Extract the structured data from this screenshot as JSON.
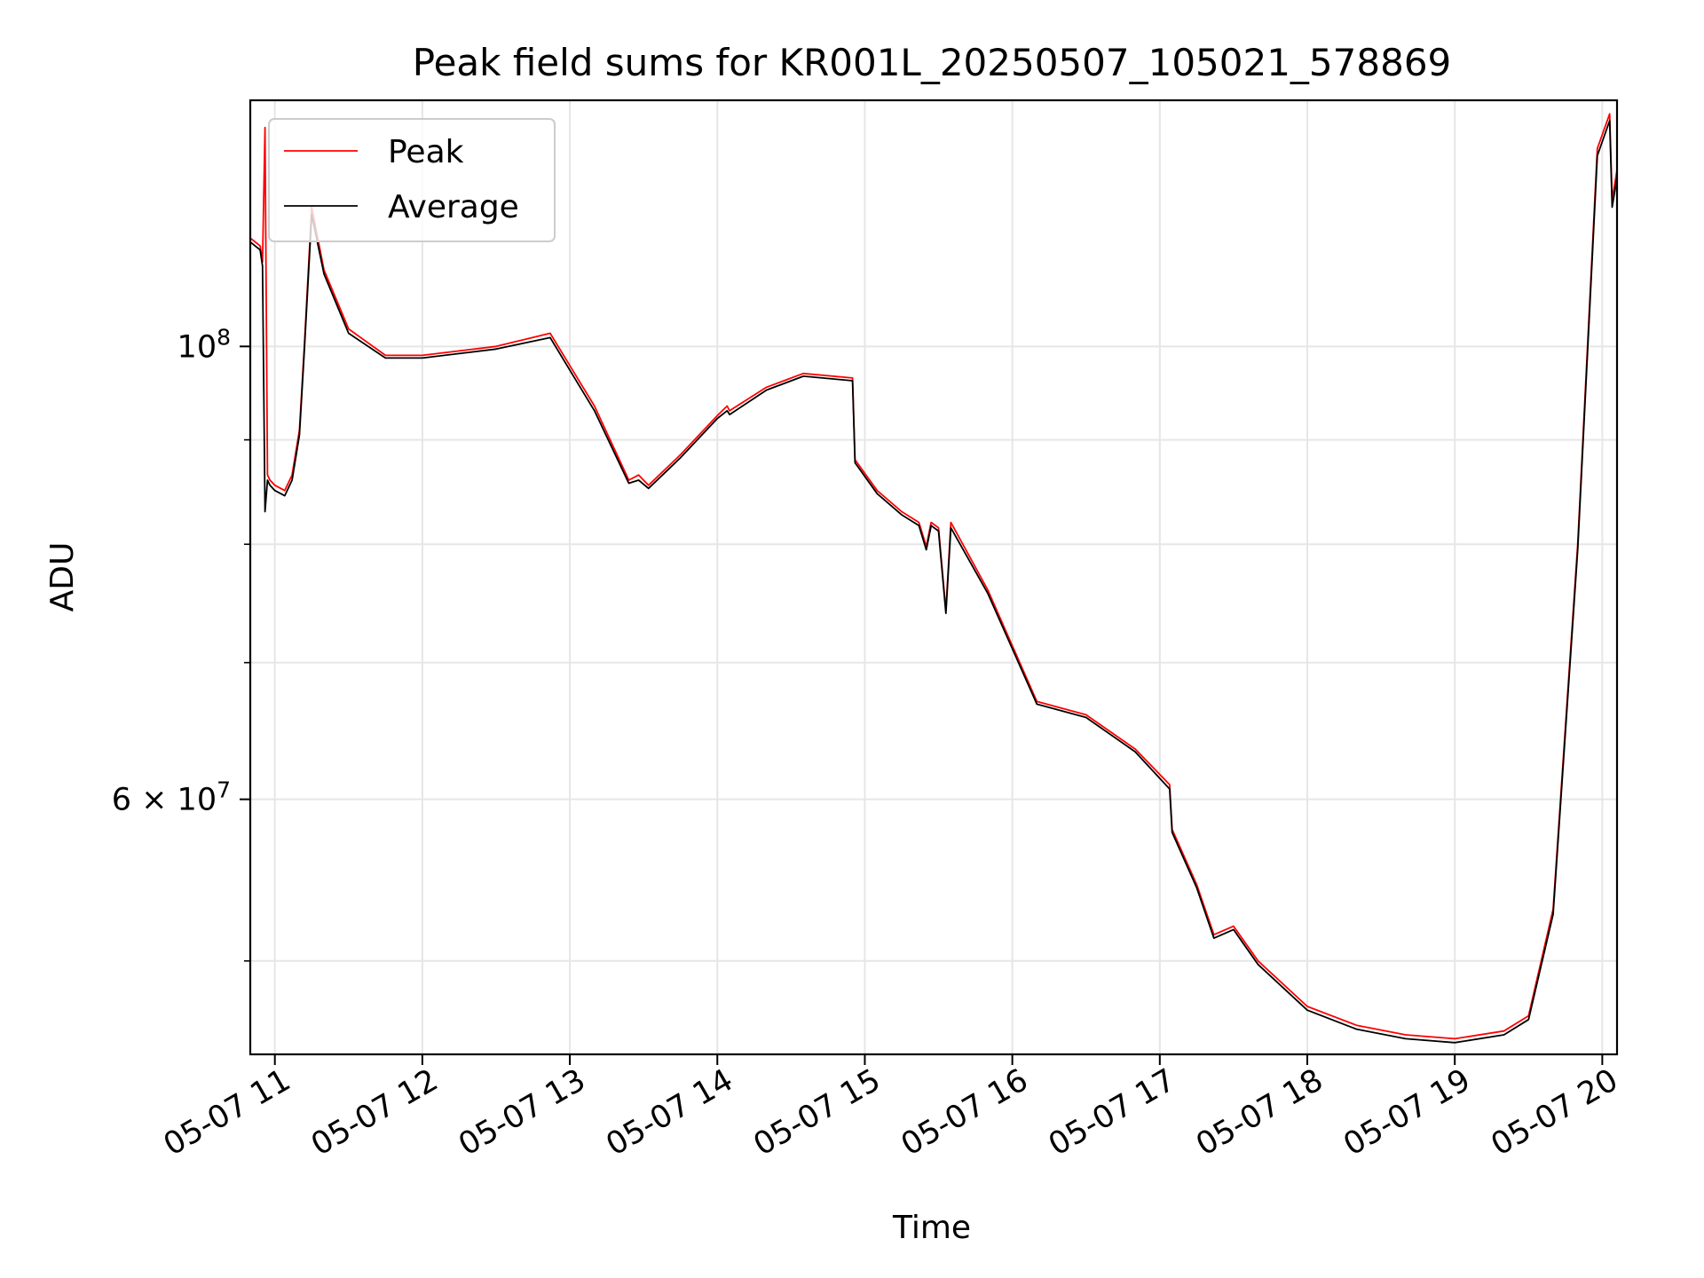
{
  "chart_data": {
    "type": "line",
    "title": "Peak field sums for KR001L_20250507_105021_578869",
    "xlabel": "Time",
    "ylabel": "ADU",
    "x_scale": "time",
    "y_scale": "log",
    "xlim": [
      "2025-05-07 10:50",
      "2025-05-07 20:06"
    ],
    "ylim": [
      45000000,
      132000000
    ],
    "x_ticks": [
      {
        "t": "2025-05-07 11:00",
        "label": "05-07 11"
      },
      {
        "t": "2025-05-07 12:00",
        "label": "05-07 12"
      },
      {
        "t": "2025-05-07 13:00",
        "label": "05-07 13"
      },
      {
        "t": "2025-05-07 14:00",
        "label": "05-07 14"
      },
      {
        "t": "2025-05-07 15:00",
        "label": "05-07 15"
      },
      {
        "t": "2025-05-07 16:00",
        "label": "05-07 16"
      },
      {
        "t": "2025-05-07 17:00",
        "label": "05-07 17"
      },
      {
        "t": "2025-05-07 18:00",
        "label": "05-07 18"
      },
      {
        "t": "2025-05-07 19:00",
        "label": "05-07 19"
      },
      {
        "t": "2025-05-07 20:00",
        "label": "05-07 20"
      }
    ],
    "y_major_ticks": [
      {
        "value": 100000000,
        "label_base": "10",
        "label_exp": "8",
        "label_coef": ""
      },
      {
        "value": 60000000,
        "label_base": "10",
        "label_exp": "7",
        "label_coef": "6 × "
      }
    ],
    "y_minor_ticks": [
      50000000,
      70000000,
      80000000,
      90000000
    ],
    "grid": true,
    "legend": {
      "location": "upper-left"
    },
    "series": [
      {
        "name": "Peak",
        "color": "#ff0000",
        "points": [
          [
            "2025-05-07 10:50",
            113000000
          ],
          [
            "2025-05-07 10:54",
            112000000
          ],
          [
            "2025-05-07 10:55",
            110000000
          ],
          [
            "2025-05-07 10:56",
            128000000
          ],
          [
            "2025-05-07 10:57",
            86500000
          ],
          [
            "2025-05-07 10:58",
            86000000
          ],
          [
            "2025-05-07 11:00",
            85500000
          ],
          [
            "2025-05-07 11:04",
            85000000
          ],
          [
            "2025-05-07 11:07",
            86500000
          ],
          [
            "2025-05-07 11:10",
            91000000
          ],
          [
            "2025-05-07 11:12",
            100000000
          ],
          [
            "2025-05-07 11:15",
            117000000
          ],
          [
            "2025-05-07 11:20",
            109000000
          ],
          [
            "2025-05-07 11:30",
            102000000
          ],
          [
            "2025-05-07 11:45",
            99000000
          ],
          [
            "2025-05-07 12:00",
            99000000
          ],
          [
            "2025-05-07 12:30",
            100000000
          ],
          [
            "2025-05-07 12:52",
            101500000
          ],
          [
            "2025-05-07 13:10",
            93500000
          ],
          [
            "2025-05-07 13:24",
            86000000
          ],
          [
            "2025-05-07 13:28",
            86500000
          ],
          [
            "2025-05-07 13:32",
            85500000
          ],
          [
            "2025-05-07 13:45",
            88500000
          ],
          [
            "2025-05-07 14:00",
            92500000
          ],
          [
            "2025-05-07 14:04",
            93500000
          ],
          [
            "2025-05-07 14:05",
            93000000
          ],
          [
            "2025-05-07 14:20",
            95500000
          ],
          [
            "2025-05-07 14:35",
            97000000
          ],
          [
            "2025-05-07 14:55",
            96500000
          ],
          [
            "2025-05-07 14:56",
            88000000
          ],
          [
            "2025-05-07 15:05",
            85000000
          ],
          [
            "2025-05-07 15:15",
            83000000
          ],
          [
            "2025-05-07 15:22",
            82000000
          ],
          [
            "2025-05-07 15:25",
            79800000
          ],
          [
            "2025-05-07 15:27",
            82000000
          ],
          [
            "2025-05-07 15:30",
            81500000
          ],
          [
            "2025-05-07 15:33",
            74200000
          ],
          [
            "2025-05-07 15:35",
            82000000
          ],
          [
            "2025-05-07 15:50",
            76000000
          ],
          [
            "2025-05-07 16:10",
            67000000
          ],
          [
            "2025-05-07 16:30",
            66000000
          ],
          [
            "2025-05-07 16:50",
            63500000
          ],
          [
            "2025-05-07 17:04",
            61000000
          ],
          [
            "2025-05-07 17:05",
            58000000
          ],
          [
            "2025-05-07 17:15",
            54500000
          ],
          [
            "2025-05-07 17:22",
            51500000
          ],
          [
            "2025-05-07 17:30",
            52000000
          ],
          [
            "2025-05-07 17:40",
            50000000
          ],
          [
            "2025-05-07 18:00",
            47500000
          ],
          [
            "2025-05-07 18:20",
            46500000
          ],
          [
            "2025-05-07 18:40",
            46000000
          ],
          [
            "2025-05-07 19:00",
            45800000
          ],
          [
            "2025-05-07 19:20",
            46200000
          ],
          [
            "2025-05-07 19:30",
            47000000
          ],
          [
            "2025-05-07 19:40",
            53000000
          ],
          [
            "2025-05-07 19:50",
            80000000
          ],
          [
            "2025-05-07 19:58",
            125000000
          ],
          [
            "2025-05-07 20:03",
            130000000
          ],
          [
            "2025-05-07 20:04",
            118000000
          ],
          [
            "2025-05-07 20:06",
            122000000
          ]
        ]
      },
      {
        "name": "Average",
        "color": "#000000",
        "points": [
          [
            "2025-05-07 10:50",
            112500000
          ],
          [
            "2025-05-07 10:54",
            111500000
          ],
          [
            "2025-05-07 10:55",
            109500000
          ],
          [
            "2025-05-07 10:56",
            83000000
          ],
          [
            "2025-05-07 10:57",
            86000000
          ],
          [
            "2025-05-07 10:58",
            85500000
          ],
          [
            "2025-05-07 11:00",
            85000000
          ],
          [
            "2025-05-07 11:04",
            84500000
          ],
          [
            "2025-05-07 11:07",
            86000000
          ],
          [
            "2025-05-07 11:10",
            90500000
          ],
          [
            "2025-05-07 11:12",
            99500000
          ],
          [
            "2025-05-07 11:15",
            116000000
          ],
          [
            "2025-05-07 11:20",
            108500000
          ],
          [
            "2025-05-07 11:30",
            101500000
          ],
          [
            "2025-05-07 11:45",
            98700000
          ],
          [
            "2025-05-07 12:00",
            98700000
          ],
          [
            "2025-05-07 12:30",
            99700000
          ],
          [
            "2025-05-07 12:52",
            101000000
          ],
          [
            "2025-05-07 13:10",
            93000000
          ],
          [
            "2025-05-07 13:24",
            85700000
          ],
          [
            "2025-05-07 13:28",
            86000000
          ],
          [
            "2025-05-07 13:32",
            85200000
          ],
          [
            "2025-05-07 13:45",
            88200000
          ],
          [
            "2025-05-07 14:00",
            92200000
          ],
          [
            "2025-05-07 14:04",
            93000000
          ],
          [
            "2025-05-07 14:05",
            92600000
          ],
          [
            "2025-05-07 14:20",
            95200000
          ],
          [
            "2025-05-07 14:35",
            96700000
          ],
          [
            "2025-05-07 14:55",
            96200000
          ],
          [
            "2025-05-07 14:56",
            87700000
          ],
          [
            "2025-05-07 15:05",
            84700000
          ],
          [
            "2025-05-07 15:15",
            82700000
          ],
          [
            "2025-05-07 15:22",
            81700000
          ],
          [
            "2025-05-07 15:25",
            79500000
          ],
          [
            "2025-05-07 15:27",
            81700000
          ],
          [
            "2025-05-07 15:30",
            81200000
          ],
          [
            "2025-05-07 15:33",
            74000000
          ],
          [
            "2025-05-07 15:35",
            81500000
          ],
          [
            "2025-05-07 15:50",
            75700000
          ],
          [
            "2025-05-07 16:10",
            66800000
          ],
          [
            "2025-05-07 16:30",
            65800000
          ],
          [
            "2025-05-07 16:50",
            63300000
          ],
          [
            "2025-05-07 17:04",
            60700000
          ],
          [
            "2025-05-07 17:05",
            57800000
          ],
          [
            "2025-05-07 17:15",
            54300000
          ],
          [
            "2025-05-07 17:22",
            51300000
          ],
          [
            "2025-05-07 17:30",
            51800000
          ],
          [
            "2025-05-07 17:40",
            49800000
          ],
          [
            "2025-05-07 18:00",
            47300000
          ],
          [
            "2025-05-07 18:20",
            46300000
          ],
          [
            "2025-05-07 18:40",
            45800000
          ],
          [
            "2025-05-07 19:00",
            45600000
          ],
          [
            "2025-05-07 19:20",
            46000000
          ],
          [
            "2025-05-07 19:30",
            46800000
          ],
          [
            "2025-05-07 19:40",
            52700000
          ],
          [
            "2025-05-07 19:50",
            79500000
          ],
          [
            "2025-05-07 19:58",
            124000000
          ],
          [
            "2025-05-07 20:03",
            129000000
          ],
          [
            "2025-05-07 20:04",
            117000000
          ],
          [
            "2025-05-07 20:06",
            121000000
          ]
        ]
      }
    ]
  }
}
